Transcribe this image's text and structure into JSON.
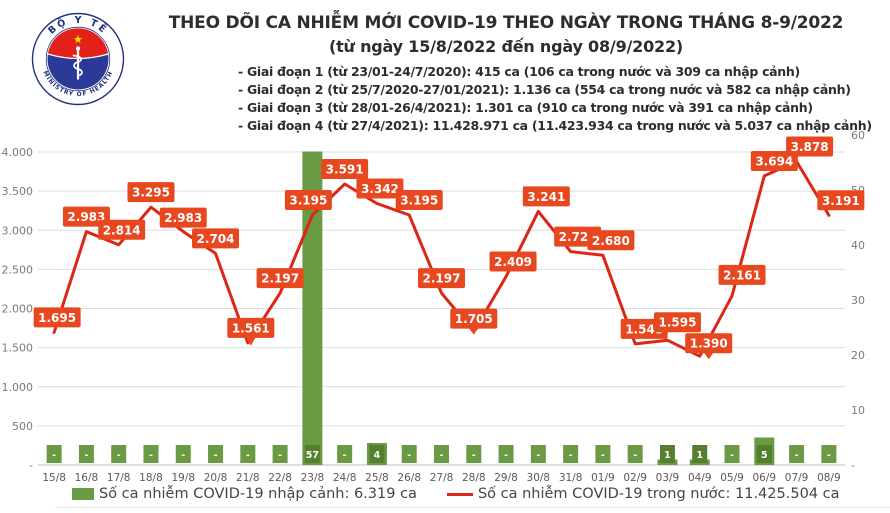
{
  "header": {
    "title": "THEO DÕI CA NHIỄM MỚI COVID-19 THEO NGÀY TRONG THÁNG 8-9/2022",
    "subtitle": "(từ ngày 15/8/2022 đến ngày 08/9/2022)",
    "phases": [
      "- Giai đoạn 1 (từ 23/01-24/7/2020): 415 ca (106 ca trong nước và 309 ca nhập cảnh)",
      "- Giai đoạn 2 (từ 25/7/2020-27/01/2021): 1.136 ca (554 ca trong nước và 582 ca nhập cảnh)",
      "- Giai đoạn 3 (từ 28/01-26/4/2021): 1.301 ca (910 ca trong nước và 391 ca nhập cảnh)",
      "- Giai đoạn 4 (từ 27/4/2021): 11.428.971 ca (11.423.934 ca trong nước và 5.037 ca nhập cảnh)"
    ],
    "logo_top_text": "BỘ Y TẾ",
    "logo_bottom_text": "MINISTRY OF HEALTH"
  },
  "chart_data": {
    "type": "combo (bar + line)",
    "categories": [
      "15/8",
      "16/8",
      "17/8",
      "18/8",
      "19/8",
      "20/8",
      "21/8",
      "22/8",
      "23/8",
      "24/8",
      "25/8",
      "26/8",
      "27/8",
      "28/8",
      "29/8",
      "30/8",
      "31/8",
      "01/9",
      "02/9",
      "03/9",
      "04/9",
      "05/9",
      "06/9",
      "07/9",
      "08/9"
    ],
    "series": [
      {
        "name": "Số ca nhiễm COVID-19 nhập cảnh",
        "type": "bar",
        "axis": "right",
        "values": [
          0,
          0,
          0,
          0,
          0,
          0,
          0,
          0,
          57,
          0,
          4,
          0,
          0,
          0,
          0,
          0,
          0,
          0,
          0,
          1,
          1,
          0,
          5,
          0,
          0
        ],
        "labels": [
          "-",
          "-",
          "-",
          "-",
          "-",
          "-",
          "-",
          "-",
          "57",
          "-",
          "4",
          "-",
          "-",
          "-",
          "-",
          "-",
          "-",
          "-",
          "-",
          "1",
          "1",
          "-",
          "5",
          "-",
          "-"
        ],
        "color": "#6a9a43",
        "label_box_color": "#557f2f",
        "label_text_color": "#ffffff"
      },
      {
        "name": "Số ca nhiễm COVID-19 trong nước",
        "type": "line",
        "axis": "left",
        "values": [
          1695,
          2983,
          2814,
          3295,
          2983,
          2704,
          1561,
          2197,
          3195,
          3591,
          3342,
          3195,
          2197,
          1705,
          2409,
          3241,
          2727,
          2680,
          1548,
          1595,
          1390,
          2161,
          3694,
          3878,
          3191
        ],
        "labels": [
          "1.695",
          "2.983",
          "2.814",
          "3.295",
          "2.983",
          "2.704",
          "1.561",
          "2.197",
          "3.195",
          "3.591",
          "3.342",
          "3.195",
          "2.197",
          "1.705",
          "2.409",
          "3.241",
          "2.727",
          "2.680",
          "1.548",
          "1.595",
          "1.390",
          "2.161",
          "3.694",
          "3.878",
          "3.191"
        ],
        "color": "#dc2616",
        "label_box_color": "#e8481f",
        "label_text_color": "#ffffff"
      }
    ],
    "left_axis": {
      "ticks": [
        "4.000",
        "3.500",
        "3.000",
        "2.500",
        "2.000",
        "1.500",
        "1.000",
        "500",
        "-"
      ],
      "min": 0,
      "max": 4000
    },
    "right_axis": {
      "ticks": [
        "60",
        "50",
        "40",
        "30",
        "20",
        "10",
        "-"
      ],
      "min": 0,
      "max": 60
    },
    "layout_hints": {
      "grid": true,
      "legend_position": "bottom",
      "label_dx": [
        3,
        0,
        3,
        0,
        0,
        0,
        3,
        0,
        -4,
        0,
        3,
        10,
        0,
        0,
        7,
        8,
        7,
        8,
        9,
        10,
        9,
        10,
        10,
        13,
        12
      ],
      "label_dy": [
        -5,
        -5,
        -5,
        -5,
        -4,
        -5,
        -5,
        -5,
        -5,
        -5,
        -5,
        -5,
        -5,
        -3,
        -5,
        -5,
        -5,
        -5,
        -5,
        -8,
        -3,
        -11,
        -5,
        -5,
        -5
      ],
      "pointer_indices": [
        6,
        13,
        20
      ]
    }
  },
  "legend": {
    "bar_label": "Số ca nhiễm COVID-19 nhập cảnh: 6.319 ca",
    "line_label": "Số ca nhiễm COVID-19 trong nước: 11.425.504 ca"
  }
}
